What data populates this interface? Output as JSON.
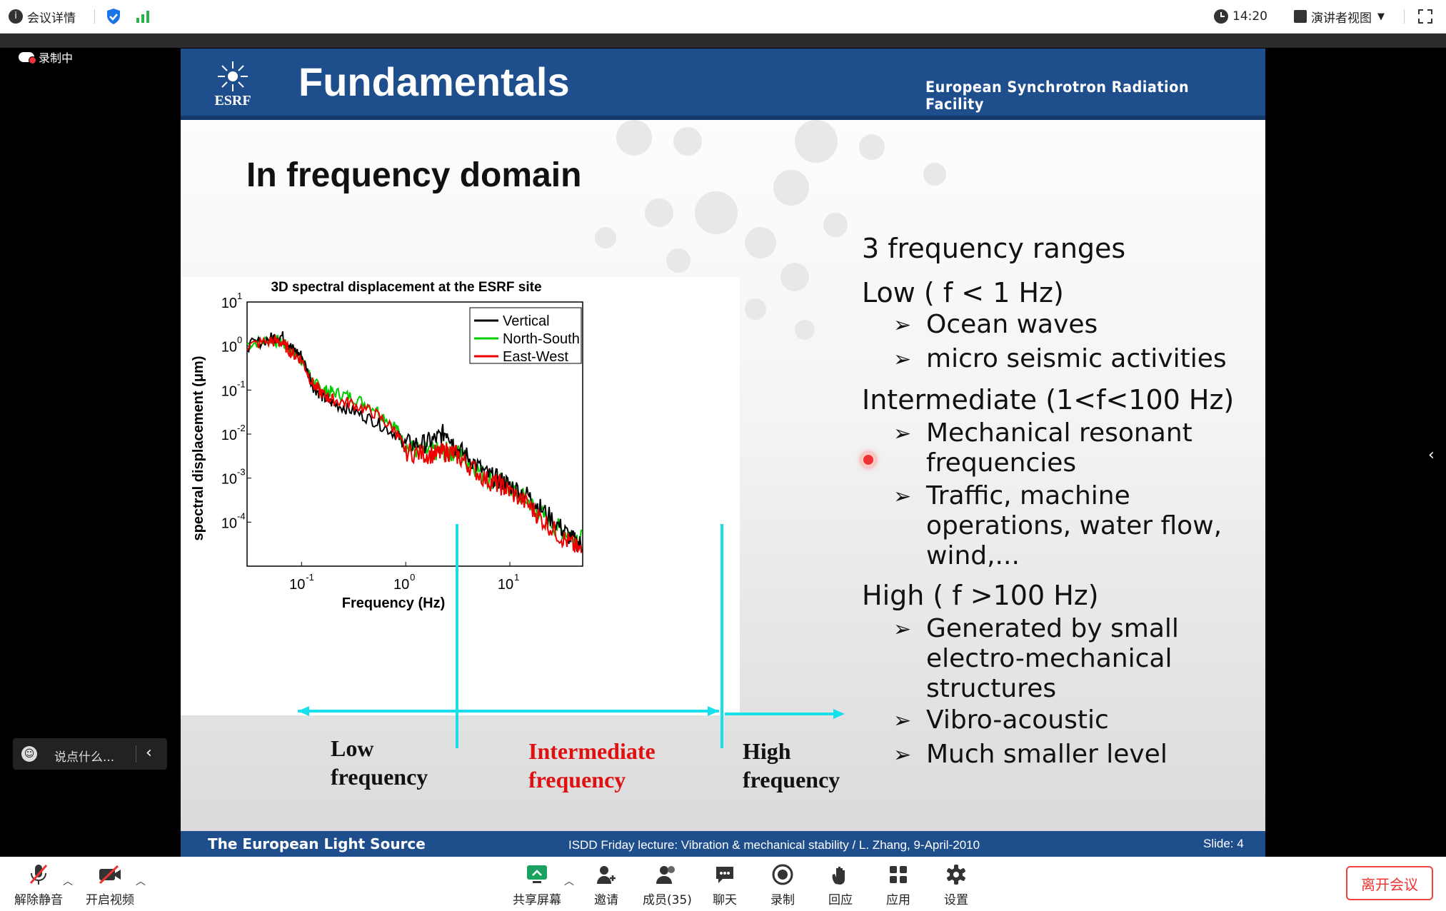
{
  "topbar": {
    "meeting_details": "会议详情",
    "time": "14:20",
    "presenter_view": "演讲者视图"
  },
  "recording": {
    "label": "录制中"
  },
  "chat": {
    "placeholder": "说点什么..."
  },
  "slide": {
    "title": "Fundamentals",
    "logo_text": "ESRF",
    "org": "European Synchrotron Radiation Facility",
    "subtitle": "In frequency domain",
    "chart_title": "3D spectral displacement at the ESRF site",
    "ranges_title": "3 frequency ranges",
    "low_head": "Low ( f < 1 Hz)",
    "low_items": [
      "Ocean waves",
      "micro seismic activities"
    ],
    "mid_head": "Intermediate (1<f<100 Hz)",
    "mid_items": [
      "Mechanical resonant",
      "frequencies",
      "Traffic, machine",
      "operations, water flow,",
      "wind,..."
    ],
    "high_head": "High ( f >100 Hz)",
    "high_items": [
      "Generated by small",
      "electro-mechanical",
      "structures",
      "Vibro-acoustic",
      "Much smaller level"
    ],
    "band_low": [
      "Low",
      "frequency"
    ],
    "band_mid": [
      "Intermediate",
      "frequency"
    ],
    "band_high": [
      "High",
      "frequency"
    ],
    "footer_left": "The European Light Source",
    "footer_mid": "ISDD Friday lecture: Vibration & mechanical stability / L. Zhang,  9-April-2010",
    "footer_right": "Slide: 4"
  },
  "chart_data": {
    "type": "line",
    "title": "3D spectral displacement at the ESRF site",
    "xlabel": "Frequency  (Hz)",
    "ylabel": "spectral displacement (μm)",
    "xscale": "log",
    "yscale": "log",
    "xlim": [
      0.03,
      50
    ],
    "ylim": [
      1e-05,
      10
    ],
    "x_ticks": [
      "10^-1",
      "10^0",
      "10^1"
    ],
    "y_ticks": [
      "10^1",
      "10^0",
      "10^-1",
      "10^-2",
      "10^-3",
      "10^-4"
    ],
    "legend_position": "top-right",
    "series": [
      {
        "name": "Vertical",
        "color": "#000000",
        "x": [
          0.03,
          0.05,
          0.065,
          0.08,
          0.1,
          0.13,
          0.16,
          0.2,
          0.3,
          0.5,
          0.8,
          1.0,
          1.5,
          2.0,
          2.5,
          3.0,
          4,
          6,
          8,
          10,
          15,
          20,
          30,
          40,
          50
        ],
        "y": [
          1.0,
          1.5,
          1.7,
          0.9,
          0.6,
          0.12,
          0.07,
          0.05,
          0.035,
          0.02,
          0.01,
          0.006,
          0.006,
          0.008,
          0.012,
          0.005,
          0.003,
          0.0012,
          0.0009,
          0.0007,
          0.0004,
          0.0002,
          8e-05,
          4e-05,
          3e-05
        ]
      },
      {
        "name": "North-South",
        "color": "#00cc00",
        "x": [
          0.03,
          0.05,
          0.065,
          0.08,
          0.1,
          0.13,
          0.16,
          0.2,
          0.3,
          0.5,
          0.8,
          1.0,
          1.5,
          2.0,
          2.5,
          3.0,
          4,
          6,
          8,
          10,
          15,
          20,
          30,
          40,
          50
        ],
        "y": [
          1.1,
          1.4,
          1.2,
          0.8,
          0.5,
          0.15,
          0.1,
          0.09,
          0.07,
          0.04,
          0.015,
          0.005,
          0.004,
          0.004,
          0.004,
          0.004,
          0.0025,
          0.001,
          0.0008,
          0.0006,
          0.0003,
          0.00015,
          7e-05,
          5e-05,
          4e-05
        ]
      },
      {
        "name": "East-West",
        "color": "#ee0000",
        "x": [
          0.03,
          0.05,
          0.065,
          0.08,
          0.1,
          0.13,
          0.16,
          0.2,
          0.3,
          0.5,
          0.8,
          1.0,
          1.5,
          2.0,
          2.5,
          3.0,
          4,
          6,
          8,
          10,
          15,
          20,
          30,
          40,
          50
        ],
        "y": [
          1.0,
          1.3,
          1.2,
          0.7,
          0.5,
          0.13,
          0.08,
          0.06,
          0.05,
          0.03,
          0.012,
          0.004,
          0.0035,
          0.0035,
          0.004,
          0.0035,
          0.002,
          0.0009,
          0.0007,
          0.0005,
          0.00025,
          0.00012,
          5e-05,
          3e-05,
          2e-05
        ]
      }
    ]
  },
  "toolbar": {
    "unmute": "解除静音",
    "start_video": "开启视频",
    "share": "共享屏幕",
    "invite": "邀请",
    "members": "成员(35)",
    "chat": "聊天",
    "record": "录制",
    "reaction": "回应",
    "apps": "应用",
    "settings": "设置",
    "leave": "离开会议"
  }
}
